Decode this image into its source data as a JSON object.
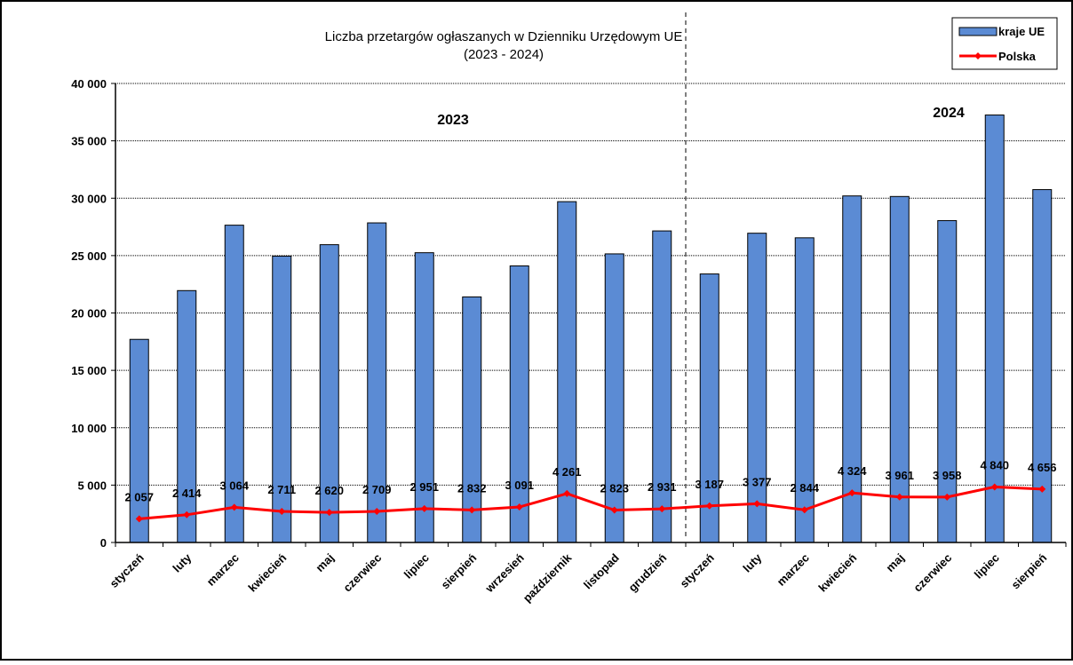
{
  "chart_data": {
    "type": "bar",
    "title": "Liczba przetargów ogłaszanych w Dzienniku Urzędowym UE",
    "subtitle": "(2023 - 2024)",
    "categories": [
      "styczeń",
      "luty",
      "marzec",
      "kwiecień",
      "maj",
      "czerwiec",
      "lipiec",
      "sierpień",
      "wrzesień",
      "październik",
      "listopad",
      "grudzień",
      "styczeń",
      "luty",
      "marzec",
      "kwiecień",
      "maj",
      "czerwiec",
      "lipiec",
      "sierpień"
    ],
    "series": [
      {
        "name": "kraje UE",
        "type": "bar",
        "color": "#5b8bd4",
        "values": [
          17700,
          21950,
          27650,
          24950,
          25950,
          27850,
          25250,
          21400,
          24100,
          29700,
          25150,
          27150,
          23400,
          26950,
          26550,
          30200,
          30150,
          28050,
          37250,
          30750
        ]
      },
      {
        "name": "Polska",
        "type": "line",
        "color": "#ff0000",
        "values": [
          2057,
          2414,
          3064,
          2711,
          2620,
          2709,
          2951,
          2832,
          3091,
          4261,
          2823,
          2931,
          3187,
          3377,
          2844,
          4324,
          3961,
          3958,
          4840,
          4656
        ],
        "labels": [
          "2 057",
          "2 414",
          "3 064",
          "2 711",
          "2 620",
          "2 709",
          "2 951",
          "2 832",
          "3 091",
          "4 261",
          "2 823",
          "2 931",
          "3 187",
          "3 377",
          "2 844",
          "4 324",
          "3 961",
          "3 958",
          "4 840",
          "4 656"
        ]
      }
    ],
    "ylim": [
      0,
      40000
    ],
    "yticks": [
      0,
      5000,
      10000,
      15000,
      20000,
      25000,
      30000,
      35000,
      40000
    ],
    "ytick_labels": [
      "0",
      "5 000",
      "10 000",
      "15 000",
      "20 000",
      "25 000",
      "30 000",
      "35 000",
      "40 000"
    ],
    "year_labels": [
      "2023",
      "2024"
    ],
    "grid": true,
    "legend": "top-right"
  }
}
